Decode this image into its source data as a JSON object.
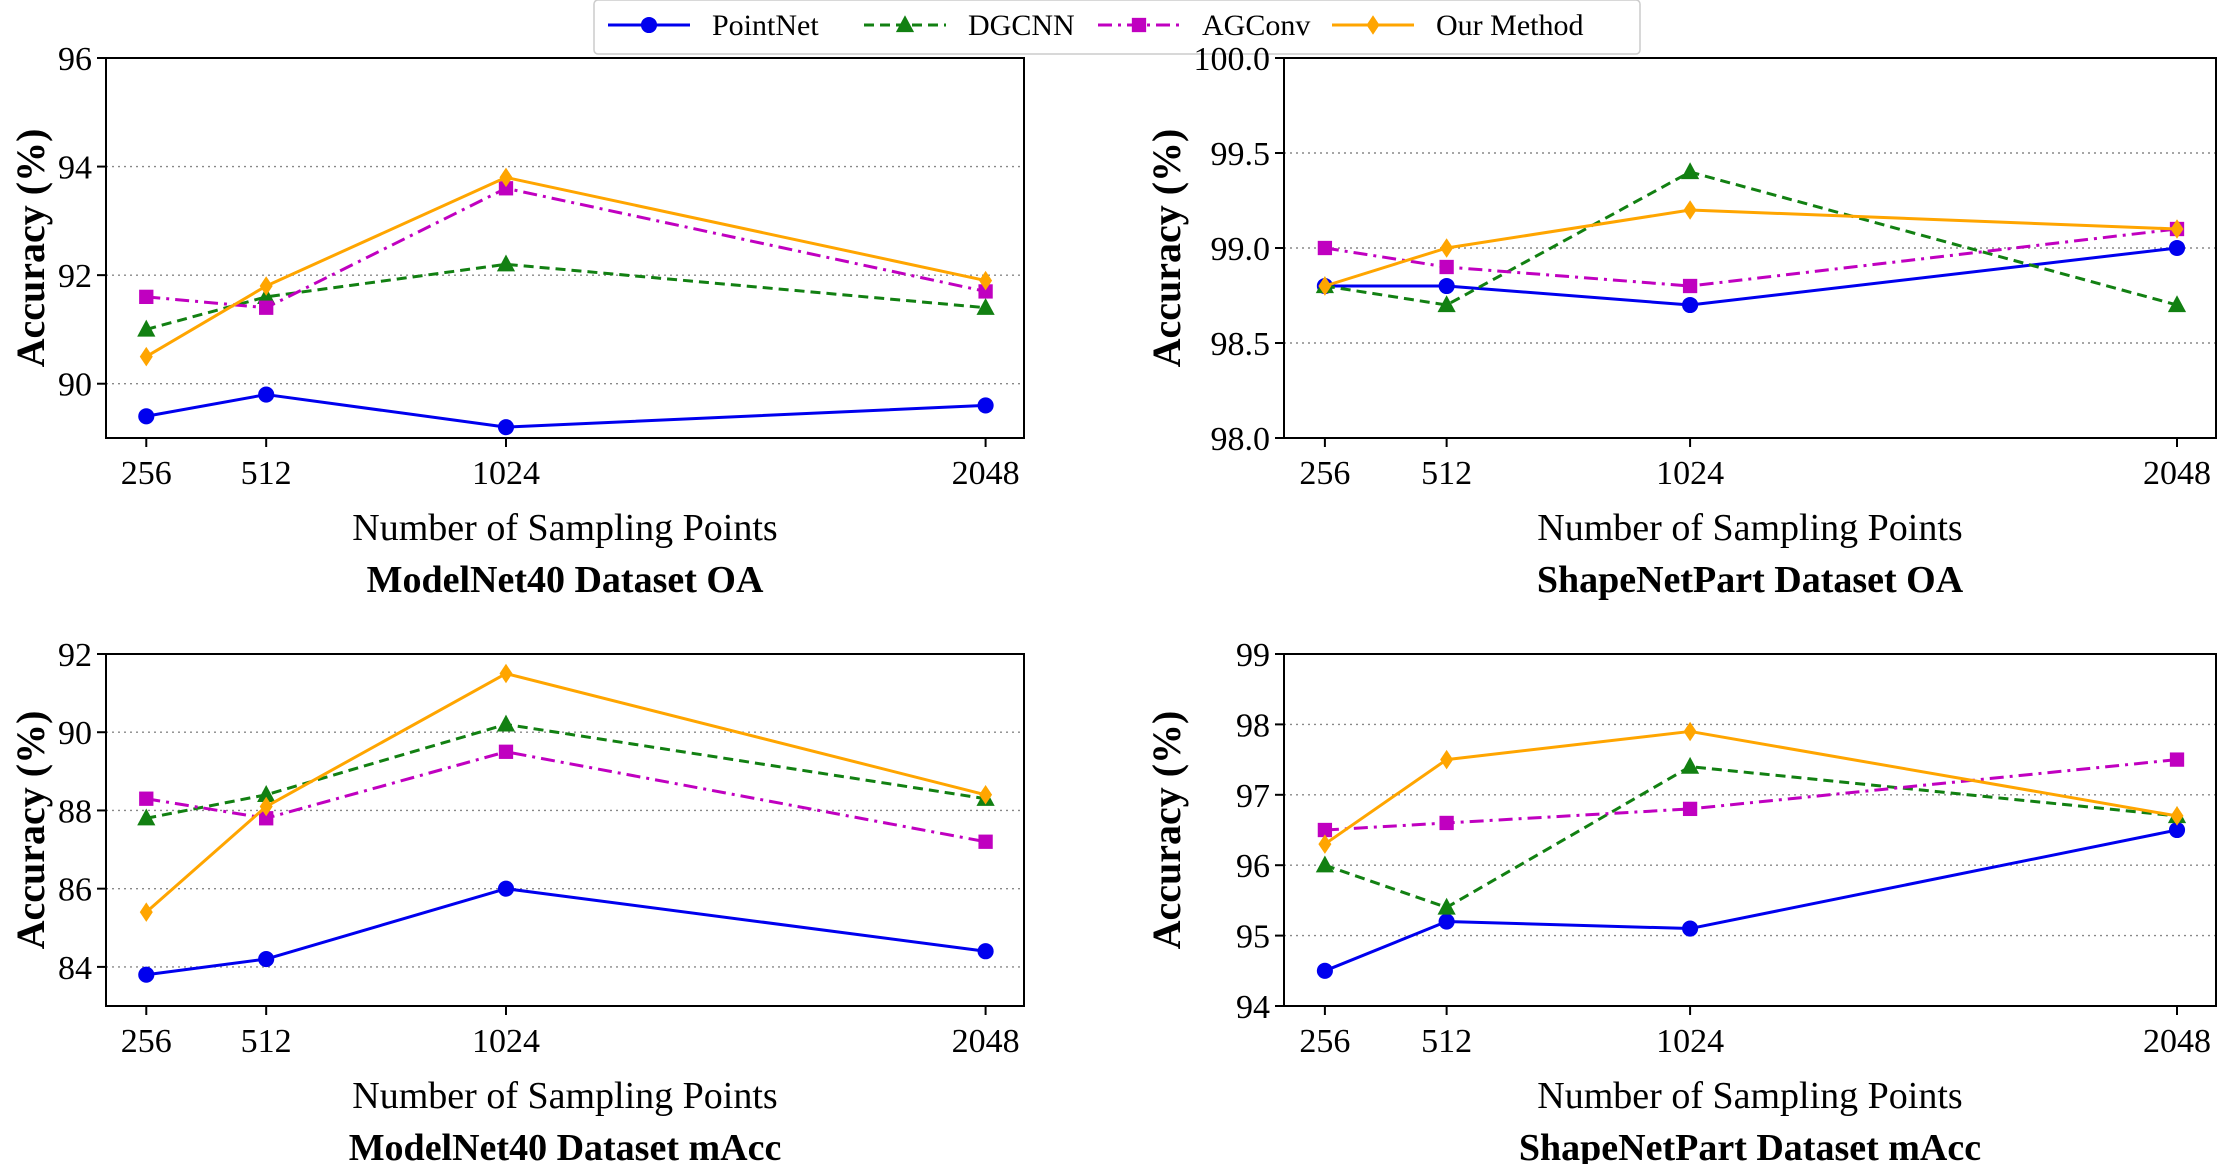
{
  "legend": {
    "entries": [
      {
        "name": "PointNet",
        "color": "#0000ee",
        "marker": "circle",
        "dash": "solid"
      },
      {
        "name": "DGCNN",
        "color": "#128012",
        "marker": "triangle",
        "dash": "dashed"
      },
      {
        "name": "AGConv",
        "color": "#c000c0",
        "marker": "square",
        "dash": "dashdot"
      },
      {
        "name": "Our Method",
        "color": "#ffa500",
        "marker": "diamond",
        "dash": "solid"
      }
    ]
  },
  "chart_data": [
    {
      "type": "line",
      "title": "ModelNet40 Dataset OA",
      "xlabel": "Number of Sampling Points",
      "ylabel": "Accuracy (%)",
      "x": [
        256,
        512,
        1024,
        2048
      ],
      "x_tick_labels": [
        "256",
        "512",
        "1024",
        "2048"
      ],
      "xlim": [
        170,
        2130
      ],
      "ylim": [
        89,
        96
      ],
      "y_ticks": [
        90,
        92,
        94,
        96
      ],
      "y_tick_labels": [
        "90",
        "92",
        "94",
        "96"
      ],
      "grid": "horizontal",
      "series": [
        {
          "name": "PointNet",
          "values": [
            89.4,
            89.8,
            89.2,
            89.6
          ]
        },
        {
          "name": "DGCNN",
          "values": [
            91.0,
            91.6,
            92.2,
            91.4
          ]
        },
        {
          "name": "AGConv",
          "values": [
            91.6,
            91.4,
            93.6,
            91.7
          ]
        },
        {
          "name": "Our Method",
          "values": [
            90.5,
            91.8,
            93.8,
            91.9
          ]
        }
      ]
    },
    {
      "type": "line",
      "title": "ShapeNetPart Dataset OA",
      "xlabel": "Number of Sampling Points",
      "ylabel": "Accuracy (%)",
      "x": [
        256,
        512,
        1024,
        2048
      ],
      "x_tick_labels": [
        "256",
        "512",
        "1024",
        "2048"
      ],
      "xlim": [
        170,
        2130
      ],
      "ylim": [
        98.0,
        100.0
      ],
      "y_ticks": [
        98.0,
        98.5,
        99.0,
        99.5,
        100.0
      ],
      "y_tick_labels": [
        "98.0",
        "98.5",
        "99.0",
        "99.5",
        "100.0"
      ],
      "grid": "horizontal",
      "series": [
        {
          "name": "PointNet",
          "values": [
            98.8,
            98.8,
            98.7,
            99.0
          ]
        },
        {
          "name": "DGCNN",
          "values": [
            98.8,
            98.7,
            99.4,
            98.7
          ]
        },
        {
          "name": "AGConv",
          "values": [
            99.0,
            98.9,
            98.8,
            99.1
          ]
        },
        {
          "name": "Our Method",
          "values": [
            98.8,
            99.0,
            99.2,
            99.1
          ]
        }
      ]
    },
    {
      "type": "line",
      "title": "ModelNet40 Dataset mAcc",
      "xlabel": "Number of Sampling Points",
      "ylabel": "Accuracy (%)",
      "x": [
        256,
        512,
        1024,
        2048
      ],
      "x_tick_labels": [
        "256",
        "512",
        "1024",
        "2048"
      ],
      "xlim": [
        170,
        2130
      ],
      "ylim": [
        83,
        92
      ],
      "y_ticks": [
        84,
        86,
        88,
        90,
        92
      ],
      "y_tick_labels": [
        "84",
        "86",
        "88",
        "90",
        "92"
      ],
      "grid": "horizontal",
      "series": [
        {
          "name": "PointNet",
          "values": [
            83.8,
            84.2,
            86.0,
            84.4
          ]
        },
        {
          "name": "DGCNN",
          "values": [
            87.8,
            88.4,
            90.2,
            88.3
          ]
        },
        {
          "name": "AGConv",
          "values": [
            88.3,
            87.8,
            89.5,
            87.2
          ]
        },
        {
          "name": "Our Method",
          "values": [
            85.4,
            88.1,
            91.5,
            88.4
          ]
        }
      ]
    },
    {
      "type": "line",
      "title": "ShapeNetPart Dataset mAcc",
      "xlabel": "Number of Sampling Points",
      "ylabel": "Accuracy (%)",
      "x": [
        256,
        512,
        1024,
        2048
      ],
      "x_tick_labels": [
        "256",
        "512",
        "1024",
        "2048"
      ],
      "xlim": [
        170,
        2130
      ],
      "ylim": [
        94,
        99
      ],
      "y_ticks": [
        94,
        95,
        96,
        97,
        98,
        99
      ],
      "y_tick_labels": [
        "94",
        "95",
        "96",
        "97",
        "98",
        "99"
      ],
      "grid": "horizontal",
      "series": [
        {
          "name": "PointNet",
          "values": [
            94.5,
            95.2,
            95.1,
            96.5
          ]
        },
        {
          "name": "DGCNN",
          "values": [
            96.0,
            95.4,
            97.4,
            96.7
          ]
        },
        {
          "name": "AGConv",
          "values": [
            96.5,
            96.6,
            96.8,
            97.5
          ]
        },
        {
          "name": "Our Method",
          "values": [
            96.3,
            97.5,
            97.9,
            96.7
          ]
        }
      ]
    }
  ]
}
